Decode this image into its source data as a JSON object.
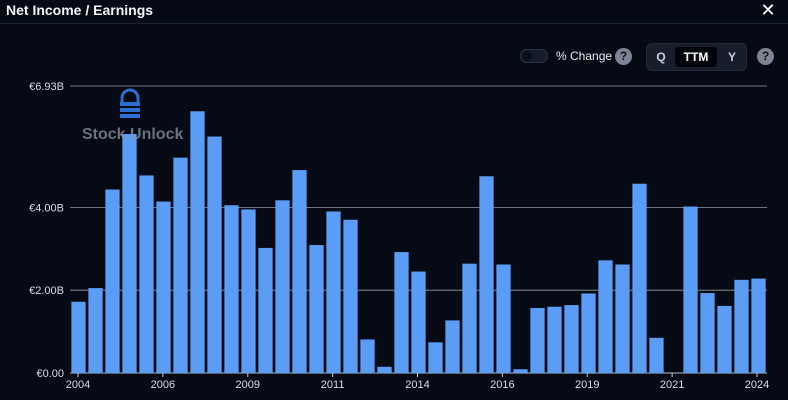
{
  "header": {
    "title": "Net Income / Earnings",
    "close_icon": "close-icon",
    "close_glyph": "✕"
  },
  "controls": {
    "percent_change_label": "% Change",
    "percent_change_enabled": false,
    "help_glyph": "?",
    "periods": [
      "Q",
      "TTM",
      "Y"
    ],
    "selected_period": "TTM"
  },
  "watermark": {
    "text": "Stock Unlock",
    "icon": "stock-unlock-logo-icon"
  },
  "colors": {
    "background": "#050a14",
    "bar": "#5b9cf6",
    "grid": "#c4c9d2",
    "watermark_logo": "#2c6fd1"
  },
  "chart_data": {
    "type": "bar",
    "title": "Net Income / Earnings",
    "xlabel": "",
    "ylabel": "",
    "series": [
      {
        "values": [
          1.72,
          2.05,
          4.43,
          5.77,
          4.77,
          4.14,
          5.2,
          6.32,
          5.71,
          4.05,
          3.95,
          3.02,
          4.17,
          4.9,
          3.09,
          3.9,
          3.7,
          0.81,
          0.15,
          2.92,
          2.45,
          0.74,
          1.27,
          2.64,
          4.75,
          2.62,
          0.09,
          1.57,
          1.6,
          1.64,
          1.92,
          2.72,
          2.62,
          4.57,
          0.85,
          0.0,
          4.02,
          1.93,
          1.62,
          2.25,
          2.28
        ]
      }
    ],
    "x_tick_labels": [
      "2004",
      "2006",
      "2009",
      "2011",
      "2014",
      "2016",
      "2019",
      "2021",
      "2024"
    ],
    "y_tick_labels": [
      "€0.00",
      "€2.00B",
      "€4.00B",
      "€6.93B"
    ],
    "y_ticks": [
      0,
      2,
      4,
      6.93
    ],
    "ylim": [
      0,
      6.93
    ],
    "grid": true,
    "legend": "none"
  }
}
